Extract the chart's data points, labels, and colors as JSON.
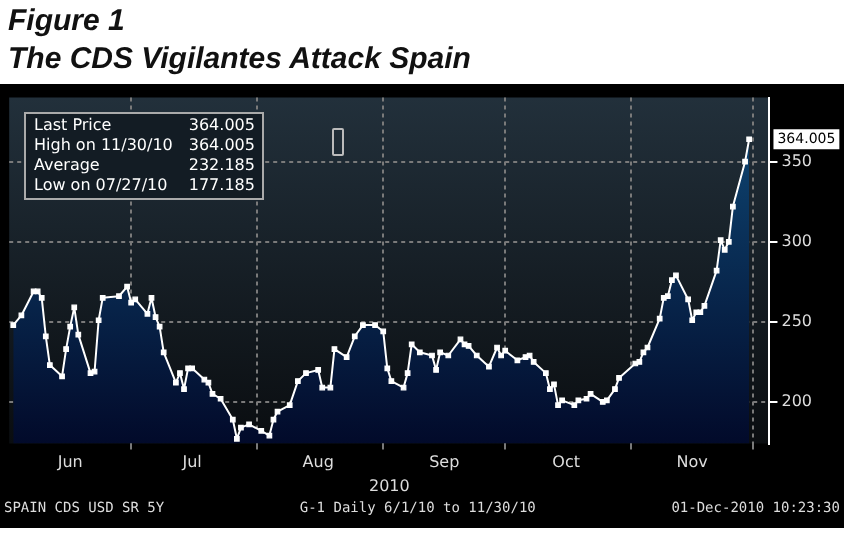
{
  "chart_data": {
    "type": "area",
    "title": "Figure 1",
    "subtitle": "The CDS Vigilantes Attack Spain",
    "xlabel": "2010",
    "annotations": [
      "Last Price 364.005",
      "High on 11/30/10 364.005",
      "Average 232.185",
      "Low on 07/27/10 177.185",
      "SPAIN CDS USD SR 5Y",
      "G-1  Daily 6/1/10 to 11/30/10",
      "01-Dec-2010 10:23:30",
      {
        "text": "364.005",
        "y": 364.005
      }
    ],
    "x": [
      "2010-06-02",
      "2010-06-04",
      "2010-06-07",
      "2010-06-08",
      "2010-06-09",
      "2010-06-10",
      "2010-06-11",
      "2010-06-14",
      "2010-06-15",
      "2010-06-16",
      "2010-06-17",
      "2010-06-18",
      "2010-06-21",
      "2010-06-22",
      "2010-06-23",
      "2010-06-24",
      "2010-06-28",
      "2010-06-30",
      "2010-07-01",
      "2010-07-02",
      "2010-07-05",
      "2010-07-06",
      "2010-07-07",
      "2010-07-08",
      "2010-07-09",
      "2010-07-12",
      "2010-07-13",
      "2010-07-14",
      "2010-07-15",
      "2010-07-16",
      "2010-07-19",
      "2010-07-20",
      "2010-07-21",
      "2010-07-23",
      "2010-07-26",
      "2010-07-27",
      "2010-07-28",
      "2010-07-30",
      "2010-08-02",
      "2010-08-04",
      "2010-08-05",
      "2010-08-06",
      "2010-08-09",
      "2010-08-11",
      "2010-08-13",
      "2010-08-16",
      "2010-08-17",
      "2010-08-19",
      "2010-08-20",
      "2010-08-23",
      "2010-08-25",
      "2010-08-27",
      "2010-08-30",
      "2010-09-01",
      "2010-09-02",
      "2010-09-03",
      "2010-09-06",
      "2010-09-07",
      "2010-09-08",
      "2010-09-10",
      "2010-09-13",
      "2010-09-14",
      "2010-09-15",
      "2010-09-17",
      "2010-09-20",
      "2010-09-21",
      "2010-09-22",
      "2010-09-24",
      "2010-09-27",
      "2010-09-29",
      "2010-09-30",
      "2010-10-01",
      "2010-10-04",
      "2010-10-06",
      "2010-10-07",
      "2010-10-08",
      "2010-10-11",
      "2010-10-12",
      "2010-10-13",
      "2010-10-14",
      "2010-10-15",
      "2010-10-18",
      "2010-10-19",
      "2010-10-21",
      "2010-10-22",
      "2010-10-25",
      "2010-10-26",
      "2010-10-28",
      "2010-10-29",
      "2010-11-02",
      "2010-11-03",
      "2010-11-04",
      "2010-11-05",
      "2010-11-08",
      "2010-11-09",
      "2010-11-10",
      "2010-11-11",
      "2010-11-12",
      "2010-11-15",
      "2010-11-16",
      "2010-11-17",
      "2010-11-18",
      "2010-11-19",
      "2010-11-22",
      "2010-11-23",
      "2010-11-24",
      "2010-11-25",
      "2010-11-26",
      "2010-11-29",
      "2010-11-30"
    ],
    "series": [
      {
        "color": "#0f4a78",
        "values": [
          248,
          254,
          269,
          269,
          265,
          241,
          223,
          216,
          233,
          247,
          259,
          242,
          218,
          219,
          251,
          265,
          266,
          272,
          262,
          264,
          255,
          265,
          253,
          247,
          231,
          212,
          218,
          208,
          221,
          221,
          214,
          212,
          205,
          202,
          189,
          177,
          184,
          186,
          182,
          179,
          189,
          194,
          198,
          213,
          218,
          220,
          209,
          209,
          233,
          228,
          241,
          248,
          248,
          244,
          221,
          213,
          209,
          218,
          236,
          231,
          229,
          220,
          231,
          229,
          239,
          236,
          235,
          229,
          222,
          234,
          229,
          232,
          226,
          228,
          229,
          225,
          218,
          208,
          211,
          198,
          201,
          198,
          201,
          202,
          205,
          200,
          201,
          208,
          215,
          224,
          225,
          231,
          234,
          252,
          265,
          266,
          276,
          279,
          264,
          251,
          256,
          256,
          260,
          282,
          301,
          295,
          300,
          322,
          350,
          364
        ]
      }
    ],
    "xlim": [
      "2010-06-01",
      "2010-12-05"
    ],
    "xticks": [
      {
        "value": "2010-06-16",
        "label": "Jun"
      },
      {
        "value": "2010-07-01",
        "label": null
      },
      {
        "value": "2010-07-16",
        "label": "Jul"
      },
      {
        "value": "2010-08-01",
        "label": null
      },
      {
        "value": "2010-08-16",
        "label": "Aug"
      },
      {
        "value": "2010-09-01",
        "label": null
      },
      {
        "value": "2010-09-16",
        "label": "Sep"
      },
      {
        "value": "2010-10-01",
        "label": null
      },
      {
        "value": "2010-10-16",
        "label": "Oct"
      },
      {
        "value": "2010-11-01",
        "label": null
      },
      {
        "value": "2010-11-16",
        "label": "Nov"
      },
      {
        "value": "2010-12-01",
        "label": null
      }
    ],
    "ylim": [
      174,
      390
    ],
    "yticks": [
      200,
      250,
      300,
      350
    ],
    "grid": true,
    "marker": "square",
    "legend": false
  }
}
